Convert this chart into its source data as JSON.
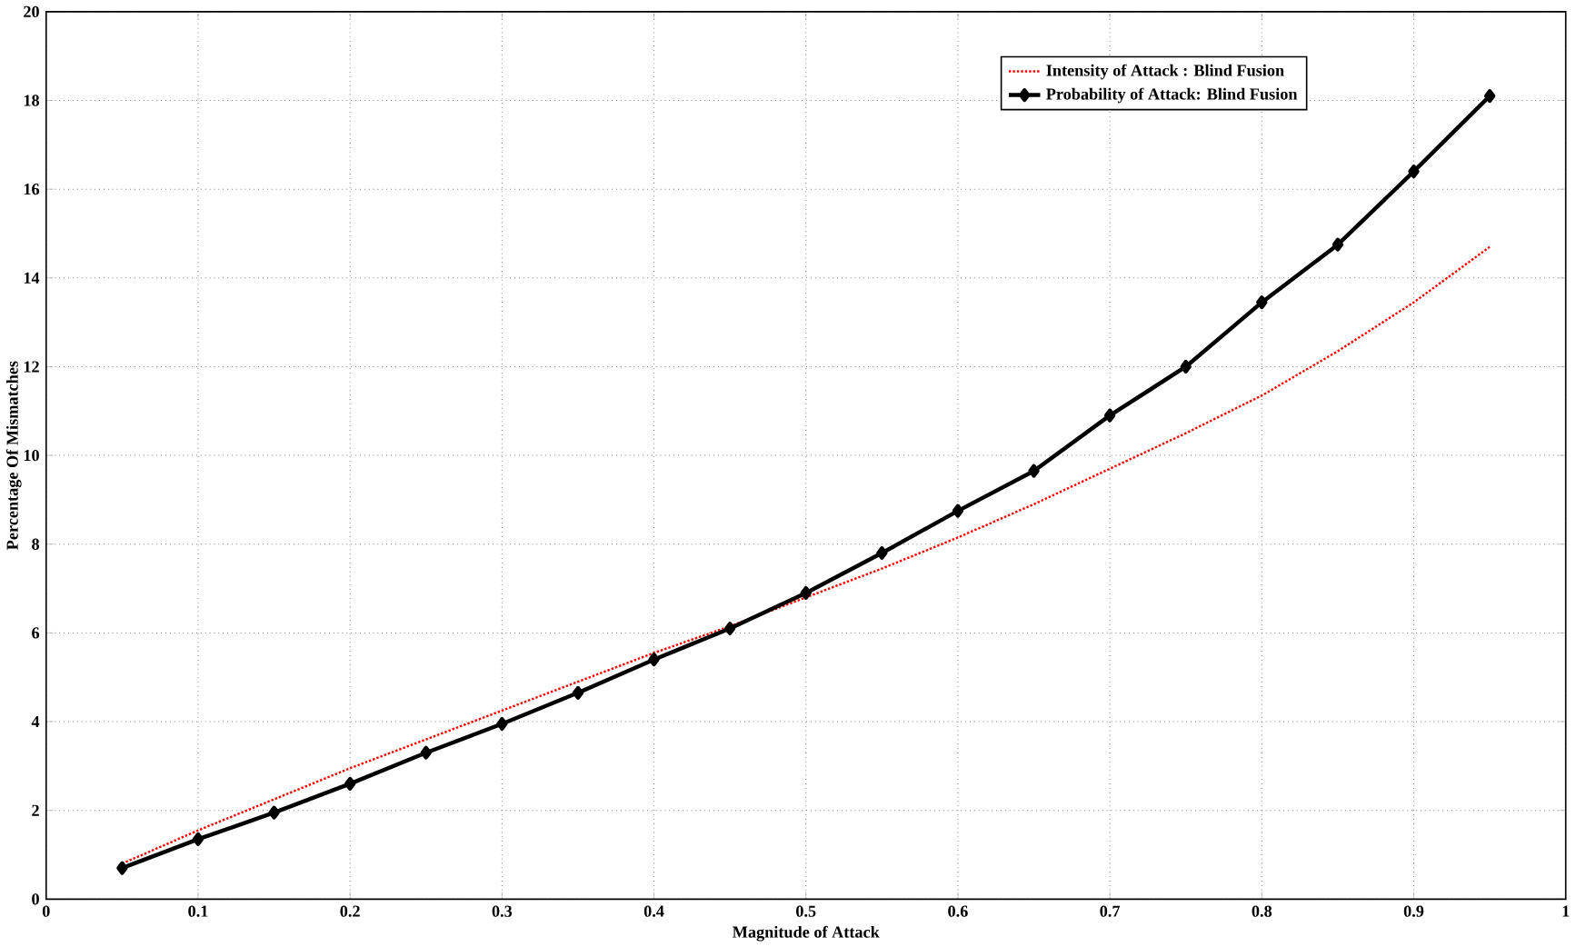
{
  "chart_data": {
    "type": "line",
    "xlabel": "Magnitude of Attack",
    "ylabel": "Percentage Of Mismatches",
    "x": [
      0.05,
      0.1,
      0.15,
      0.2,
      0.25,
      0.3,
      0.35,
      0.4,
      0.45,
      0.5,
      0.55,
      0.6,
      0.65,
      0.7,
      0.75,
      0.8,
      0.85,
      0.9,
      0.95
    ],
    "series": [
      {
        "name": "Intensity of Attack : Blind Fusion",
        "color": "#ff0000",
        "line_style": "dotted",
        "marker": "none",
        "values": [
          0.8,
          1.55,
          2.25,
          2.95,
          3.6,
          4.25,
          4.9,
          5.55,
          6.15,
          6.8,
          7.45,
          8.15,
          8.9,
          9.7,
          10.5,
          11.35,
          12.35,
          13.45,
          14.7
        ]
      },
      {
        "name": "Probability of Attack: Blind Fusion",
        "color": "#000000",
        "line_style": "solid",
        "marker": "diamond",
        "values": [
          0.7,
          1.35,
          1.95,
          2.6,
          3.3,
          3.95,
          4.65,
          5.4,
          6.1,
          6.9,
          7.8,
          8.75,
          9.65,
          10.9,
          12.0,
          13.45,
          14.75,
          16.4,
          18.1
        ]
      }
    ],
    "xlim": [
      0,
      1
    ],
    "xticks": [
      0,
      0.1,
      0.2,
      0.3,
      0.4,
      0.5,
      0.6,
      0.7,
      0.8,
      0.9,
      1
    ],
    "ylim": [
      0,
      20
    ],
    "yticks": [
      0,
      2,
      4,
      6,
      8,
      10,
      12,
      14,
      16,
      18,
      20
    ],
    "grid": true,
    "legend": "top right"
  }
}
